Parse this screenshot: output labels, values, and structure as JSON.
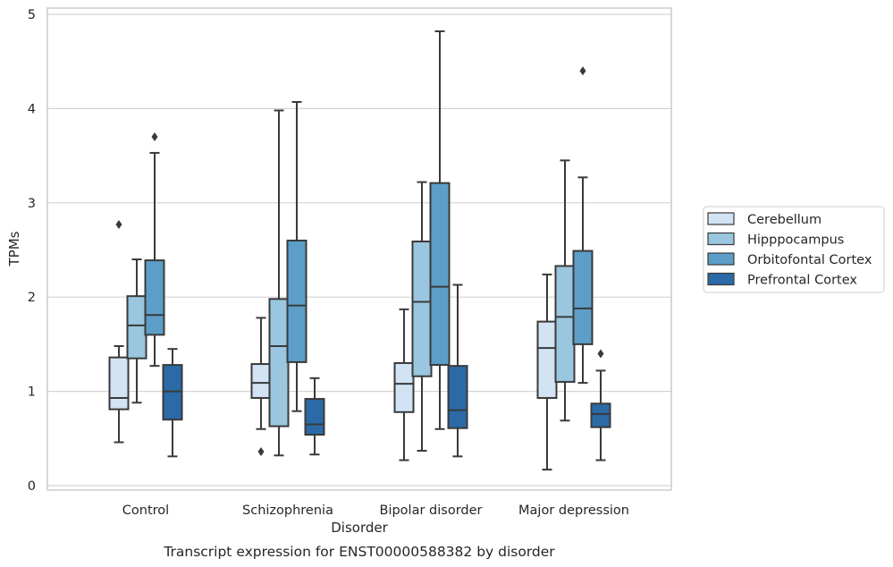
{
  "chart_data": {
    "type": "box",
    "title": "",
    "caption": "Transcript expression for ENST00000588382 by disorder",
    "xlabel": "Disorder",
    "ylabel": "TPMs",
    "ylim": [
      0,
      5
    ],
    "yticks": [
      0,
      1,
      2,
      3,
      4,
      5
    ],
    "grid": "horizontal",
    "legend_position": "right",
    "categories": [
      "Control",
      "Schizophrenia",
      "Bipolar disorder",
      "Major depression"
    ],
    "series": [
      {
        "name": "Cerebellum",
        "color": "#d2e3f3",
        "boxes": [
          {
            "whisker_low": 0.46,
            "q1": 0.81,
            "median": 0.93,
            "q3": 1.36,
            "whisker_high": 1.48,
            "outliers": [
              2.77
            ]
          },
          {
            "whisker_low": 0.6,
            "q1": 0.93,
            "median": 1.09,
            "q3": 1.29,
            "whisker_high": 1.78,
            "outliers": [
              0.36
            ]
          },
          {
            "whisker_low": 0.27,
            "q1": 0.78,
            "median": 1.08,
            "q3": 1.3,
            "whisker_high": 1.87,
            "outliers": []
          },
          {
            "whisker_low": 0.17,
            "q1": 0.93,
            "median": 1.46,
            "q3": 1.74,
            "whisker_high": 2.24,
            "outliers": []
          }
        ]
      },
      {
        "name": "Hipppocampus",
        "color": "#9ac6df",
        "boxes": [
          {
            "whisker_low": 0.88,
            "q1": 1.35,
            "median": 1.7,
            "q3": 2.01,
            "whisker_high": 2.4,
            "outliers": []
          },
          {
            "whisker_low": 0.32,
            "q1": 0.63,
            "median": 1.48,
            "q3": 1.98,
            "whisker_high": 3.98,
            "outliers": []
          },
          {
            "whisker_low": 0.37,
            "q1": 1.16,
            "median": 1.95,
            "q3": 2.59,
            "whisker_high": 3.22,
            "outliers": []
          },
          {
            "whisker_low": 0.69,
            "q1": 1.1,
            "median": 1.79,
            "q3": 2.33,
            "whisker_high": 3.45,
            "outliers": []
          }
        ]
      },
      {
        "name": "Orbitofontal Cortex",
        "color": "#5c9ec8",
        "boxes": [
          {
            "whisker_low": 1.27,
            "q1": 1.6,
            "median": 1.81,
            "q3": 2.39,
            "whisker_high": 3.53,
            "outliers": [
              3.7
            ]
          },
          {
            "whisker_low": 0.79,
            "q1": 1.31,
            "median": 1.91,
            "q3": 2.6,
            "whisker_high": 4.07,
            "outliers": []
          },
          {
            "whisker_low": 0.6,
            "q1": 1.28,
            "median": 2.11,
            "q3": 3.21,
            "whisker_high": 4.82,
            "outliers": []
          },
          {
            "whisker_low": 1.09,
            "q1": 1.5,
            "median": 1.88,
            "q3": 2.49,
            "whisker_high": 3.27,
            "outliers": [
              4.4
            ]
          }
        ]
      },
      {
        "name": "Prefrontal Cortex",
        "color": "#2b6aa6",
        "boxes": [
          {
            "whisker_low": 0.31,
            "q1": 0.7,
            "median": 1.0,
            "q3": 1.28,
            "whisker_high": 1.45,
            "outliers": []
          },
          {
            "whisker_low": 0.33,
            "q1": 0.54,
            "median": 0.65,
            "q3": 0.92,
            "whisker_high": 1.14,
            "outliers": []
          },
          {
            "whisker_low": 0.31,
            "q1": 0.61,
            "median": 0.8,
            "q3": 1.27,
            "whisker_high": 2.13,
            "outliers": []
          },
          {
            "whisker_low": 0.27,
            "q1": 0.62,
            "median": 0.76,
            "q3": 0.87,
            "whisker_high": 1.22,
            "outliers": [
              1.4
            ]
          }
        ]
      }
    ]
  }
}
